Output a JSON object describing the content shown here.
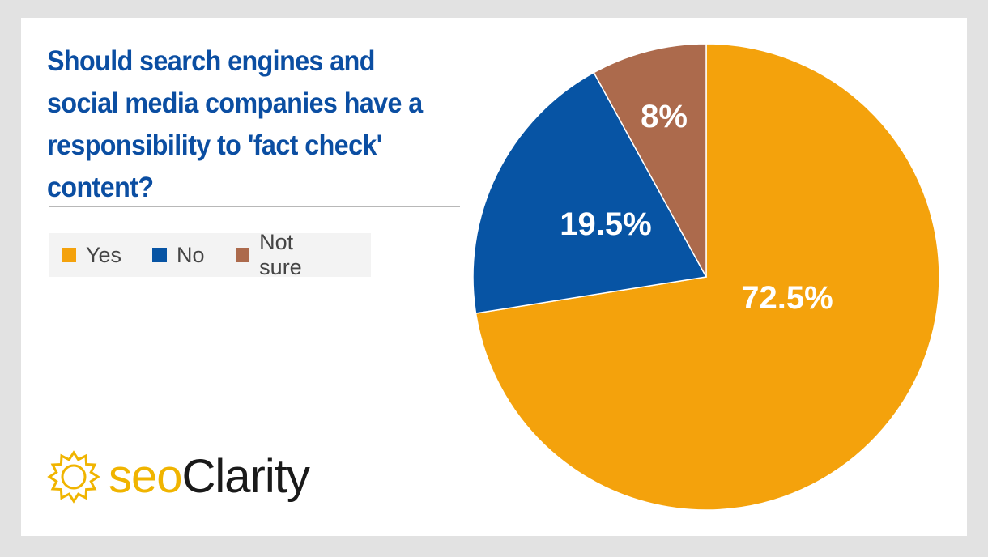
{
  "chart_data": {
    "type": "pie",
    "title": "Should search engines and social media companies have a responsibility to 'fact check' content?",
    "slices": [
      {
        "label": "Yes",
        "value": 72.5,
        "display": "72.5%",
        "color": "#f4a20c"
      },
      {
        "label": "No",
        "value": 19.5,
        "display": "19.5%",
        "color": "#0754a4"
      },
      {
        "label": "Not sure",
        "value": 8,
        "display": "8%",
        "color": "#ac6a4c"
      }
    ],
    "legend_placement": "left"
  },
  "brand": {
    "logo_seo": "seo",
    "logo_clarity": "Clarity",
    "accent": "#f0b400",
    "logo_icon": "sun-burst-icon"
  }
}
